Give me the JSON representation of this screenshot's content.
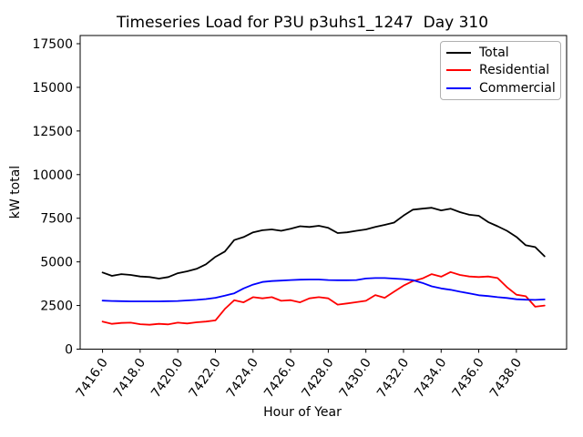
{
  "title": "Timeseries Load for P3U p3uhs1_1247  Day 310",
  "colors": {
    "total": "#000000",
    "residential": "#ff0000",
    "commercial": "#0000ff",
    "axes": "#000000",
    "background": "#ffffff",
    "legend_border": "#b0b0b0"
  },
  "chart_data": {
    "type": "line",
    "title": "Timeseries Load for P3U p3uhs1_1247  Day 310",
    "xlabel": "Hour of Year",
    "ylabel": "kW total",
    "xlim": [
      7414.81,
      7440.67
    ],
    "ylim": [
      0,
      17970
    ],
    "grid": false,
    "legend_position": "upper right",
    "x_ticks": [
      {
        "value": 7416,
        "label": "7416.0"
      },
      {
        "value": 7418,
        "label": "7418.0"
      },
      {
        "value": 7420,
        "label": "7420.0"
      },
      {
        "value": 7422,
        "label": "7422.0"
      },
      {
        "value": 7424,
        "label": "7424.0"
      },
      {
        "value": 7426,
        "label": "7426.0"
      },
      {
        "value": 7428,
        "label": "7428.0"
      },
      {
        "value": 7430,
        "label": "7430.0"
      },
      {
        "value": 7432,
        "label": "7432.0"
      },
      {
        "value": 7434,
        "label": "7434.0"
      },
      {
        "value": 7436,
        "label": "7436.0"
      },
      {
        "value": 7438,
        "label": "7438.0"
      }
    ],
    "y_ticks": [
      {
        "value": 0,
        "label": "0"
      },
      {
        "value": 2500,
        "label": "2500"
      },
      {
        "value": 5000,
        "label": "5000"
      },
      {
        "value": 7500,
        "label": "7500"
      },
      {
        "value": 10000,
        "label": "10000"
      },
      {
        "value": 12500,
        "label": "12500"
      },
      {
        "value": 15000,
        "label": "15000"
      },
      {
        "value": 17500,
        "label": "17500"
      }
    ],
    "x": [
      7416.0,
      7416.5,
      7417.0,
      7417.5,
      7418.0,
      7418.5,
      7419.0,
      7419.5,
      7420.0,
      7420.5,
      7421.0,
      7421.5,
      7422.0,
      7422.5,
      7423.0,
      7423.5,
      7424.0,
      7424.5,
      7425.0,
      7425.5,
      7426.0,
      7426.5,
      7427.0,
      7427.5,
      7428.0,
      7428.5,
      7429.0,
      7429.5,
      7430.0,
      7430.5,
      7431.0,
      7431.5,
      7432.0,
      7432.5,
      7433.0,
      7433.5,
      7434.0,
      7434.5,
      7435.0,
      7435.5,
      7436.0,
      7436.5,
      7437.0,
      7437.5,
      7438.0,
      7438.5,
      7439.0,
      7439.5
    ],
    "series": [
      {
        "name": "Total",
        "color": "#000000",
        "values": [
          4390,
          4200,
          4300,
          4250,
          4160,
          4130,
          4040,
          4130,
          4350,
          4460,
          4600,
          4860,
          5290,
          5590,
          6250,
          6420,
          6690,
          6810,
          6860,
          6780,
          6900,
          7040,
          7000,
          7070,
          6950,
          6650,
          6690,
          6780,
          6860,
          7000,
          7120,
          7250,
          7650,
          7990,
          8050,
          8100,
          7950,
          8050,
          7850,
          7700,
          7640,
          7280,
          7040,
          6780,
          6430,
          5950,
          5850,
          5320
        ]
      },
      {
        "name": "Residential",
        "color": "#ff0000",
        "values": [
          1580,
          1450,
          1500,
          1520,
          1430,
          1400,
          1450,
          1420,
          1520,
          1470,
          1540,
          1580,
          1650,
          2300,
          2800,
          2680,
          2980,
          2910,
          2980,
          2770,
          2805,
          2680,
          2910,
          2980,
          2910,
          2550,
          2620,
          2690,
          2770,
          3100,
          2940,
          3290,
          3640,
          3900,
          4050,
          4300,
          4150,
          4420,
          4250,
          4160,
          4130,
          4160,
          4075,
          3550,
          3120,
          3030,
          2430,
          2500
        ]
      },
      {
        "name": "Commercial",
        "color": "#0000ff",
        "values": [
          2780,
          2760,
          2750,
          2740,
          2740,
          2740,
          2740,
          2750,
          2760,
          2790,
          2820,
          2870,
          2940,
          3060,
          3200,
          3480,
          3700,
          3850,
          3900,
          3930,
          3960,
          3980,
          3990,
          3990,
          3960,
          3950,
          3950,
          3960,
          4050,
          4075,
          4075,
          4040,
          4010,
          3950,
          3800,
          3600,
          3480,
          3400,
          3290,
          3200,
          3090,
          3040,
          2980,
          2930,
          2860,
          2830,
          2820,
          2850
        ]
      }
    ]
  }
}
